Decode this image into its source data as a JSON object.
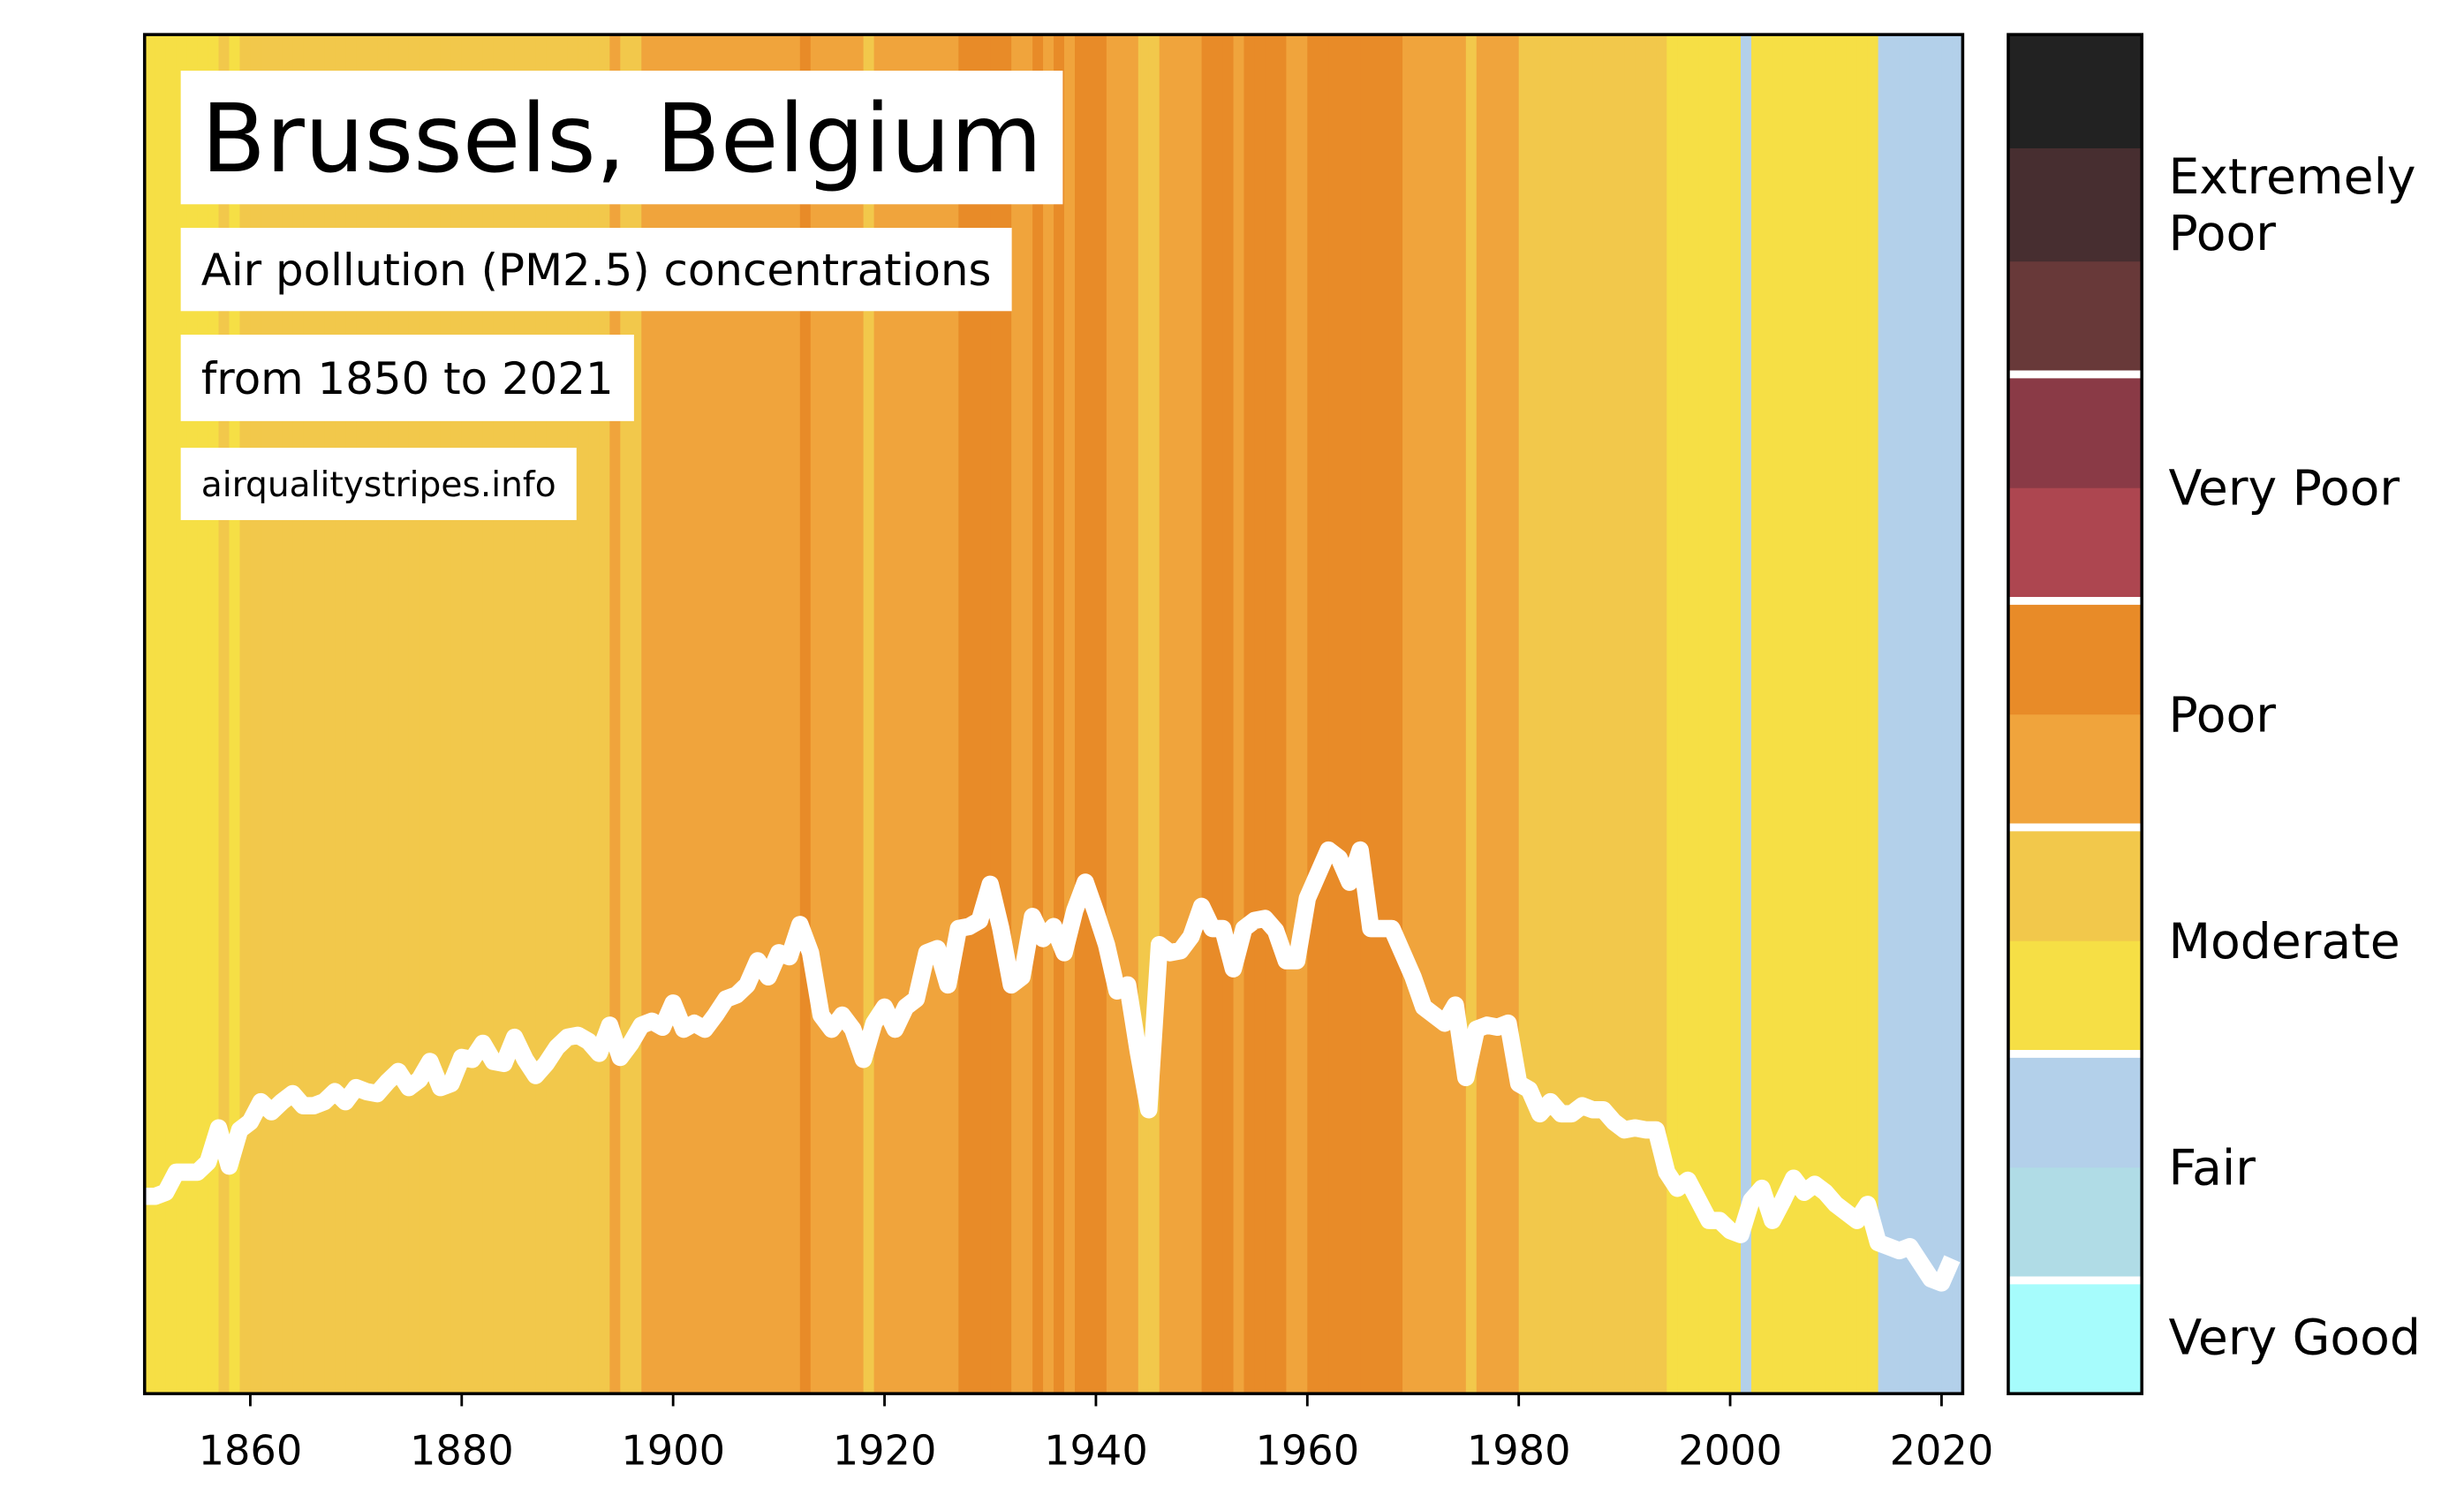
{
  "chart_data": {
    "type": "stripes",
    "title": "Brussels, Belgium",
    "subtitle": [
      "Air pollution (PM2.5) concentrations",
      "from 1850 to 2021"
    ],
    "source": "airqualitystripes.info",
    "line_color": "#ffffff",
    "xlim": [
      1850,
      2022
    ],
    "ylim": [
      7,
      74.5
    ],
    "xticks": [
      1860,
      1880,
      1900,
      1920,
      1940,
      1960,
      1980,
      2000,
      2020
    ],
    "x": [
      1850,
      1851,
      1852,
      1853,
      1854,
      1855,
      1856,
      1857,
      1858,
      1859,
      1860,
      1861,
      1862,
      1863,
      1864,
      1865,
      1866,
      1867,
      1868,
      1869,
      1870,
      1871,
      1872,
      1873,
      1874,
      1875,
      1876,
      1877,
      1878,
      1879,
      1880,
      1881,
      1882,
      1883,
      1884,
      1885,
      1886,
      1887,
      1888,
      1889,
      1890,
      1891,
      1892,
      1893,
      1894,
      1895,
      1896,
      1897,
      1898,
      1899,
      1900,
      1901,
      1902,
      1903,
      1904,
      1905,
      1906,
      1907,
      1908,
      1909,
      1910,
      1911,
      1912,
      1913,
      1914,
      1915,
      1916,
      1917,
      1918,
      1919,
      1920,
      1921,
      1922,
      1923,
      1924,
      1925,
      1926,
      1927,
      1928,
      1929,
      1930,
      1931,
      1932,
      1933,
      1934,
      1935,
      1936,
      1937,
      1938,
      1939,
      1940,
      1941,
      1942,
      1943,
      1944,
      1945,
      1946,
      1947,
      1948,
      1949,
      1950,
      1951,
      1952,
      1953,
      1954,
      1955,
      1956,
      1957,
      1958,
      1959,
      1960,
      1961,
      1962,
      1963,
      1964,
      1965,
      1966,
      1967,
      1968,
      1969,
      1970,
      1971,
      1972,
      1973,
      1974,
      1975,
      1976,
      1977,
      1978,
      1979,
      1980,
      1981,
      1982,
      1983,
      1984,
      1985,
      1986,
      1987,
      1988,
      1989,
      1990,
      1991,
      1992,
      1993,
      1994,
      1995,
      1996,
      1997,
      1998,
      1999,
      2000,
      2001,
      2002,
      2003,
      2004,
      2005,
      2006,
      2007,
      2008,
      2009,
      2010,
      2011,
      2012,
      2013,
      2014,
      2015,
      2016,
      2017,
      2018,
      2019,
      2020,
      2021
    ],
    "values": [
      16.8,
      16.8,
      17.0,
      18.0,
      18.0,
      18.0,
      18.5,
      20.2,
      18.3,
      20.1,
      20.5,
      21.5,
      21.0,
      21.5,
      21.9,
      21.3,
      21.3,
      21.5,
      22.0,
      21.5,
      22.2,
      22.0,
      21.9,
      22.5,
      23.0,
      22.2,
      22.6,
      23.5,
      22.2,
      22.4,
      23.7,
      23.6,
      24.4,
      23.5,
      23.4,
      24.7,
      23.6,
      22.8,
      23.4,
      24.2,
      24.7,
      24.8,
      24.5,
      23.9,
      25.3,
      23.7,
      24.4,
      25.3,
      25.5,
      25.2,
      26.4,
      25.1,
      25.4,
      25.1,
      25.8,
      26.6,
      26.8,
      27.3,
      28.5,
      27.7,
      28.9,
      28.7,
      30.3,
      28.9,
      25.8,
      25.1,
      25.8,
      25.1,
      23.6,
      25.4,
      26.2,
      25.1,
      26.2,
      26.6,
      28.9,
      29.1,
      27.3,
      30.1,
      30.2,
      30.5,
      32.3,
      30.1,
      27.3,
      27.7,
      30.7,
      29.6,
      30.2,
      28.9,
      31.0,
      32.4,
      30.9,
      29.3,
      27.0,
      27.3,
      24.0,
      21.1,
      29.3,
      28.9,
      29.0,
      29.7,
      31.2,
      30.1,
      30.1,
      28.1,
      30.1,
      30.5,
      30.6,
      30.0,
      28.5,
      28.5,
      31.6,
      32.8,
      34.0,
      33.6,
      32.4,
      34.0,
      30.1,
      30.1,
      30.1,
      28.9,
      27.7,
      26.2,
      25.8,
      25.4,
      26.3,
      22.7,
      25.1,
      25.3,
      25.2,
      25.4,
      22.4,
      22.1,
      20.9,
      21.5,
      20.9,
      20.9,
      21.3,
      21.1,
      21.1,
      20.5,
      20.1,
      20.2,
      20.1,
      20.1,
      18.0,
      17.2,
      17.6,
      16.6,
      15.6,
      15.6,
      15.1,
      14.9,
      16.6,
      17.2,
      15.6,
      16.6,
      17.7,
      17.0,
      17.4,
      17.0,
      16.4,
      16.0,
      15.6,
      16.4,
      14.5,
      14.3,
      14.1,
      14.3,
      13.5,
      12.7,
      12.5,
      13.7
    ],
    "colorbar": {
      "bounds": [
        0,
        5,
        10,
        15,
        20,
        25,
        30,
        35,
        40,
        45,
        50,
        55,
        60
      ],
      "colors": [
        "#a6fcfc",
        "#b0dce6",
        "#b3d0ea",
        "#f6df45",
        "#f2c84b",
        "#f0a43c",
        "#e88b28",
        "#ad4650",
        "#8a3a46",
        "#683939",
        "#472e30",
        "#222222"
      ],
      "categories": [
        {
          "label": "Very Good",
          "range": [
            0,
            5
          ]
        },
        {
          "label": "Fair",
          "range": [
            5,
            15
          ]
        },
        {
          "label": "Moderate",
          "range": [
            15,
            25
          ]
        },
        {
          "label": "Poor",
          "range": [
            25,
            35
          ]
        },
        {
          "label": "Very Poor",
          "range": [
            35,
            45
          ]
        },
        {
          "label": "Extremely Poor",
          "range": [
            45,
            60
          ]
        }
      ]
    }
  }
}
